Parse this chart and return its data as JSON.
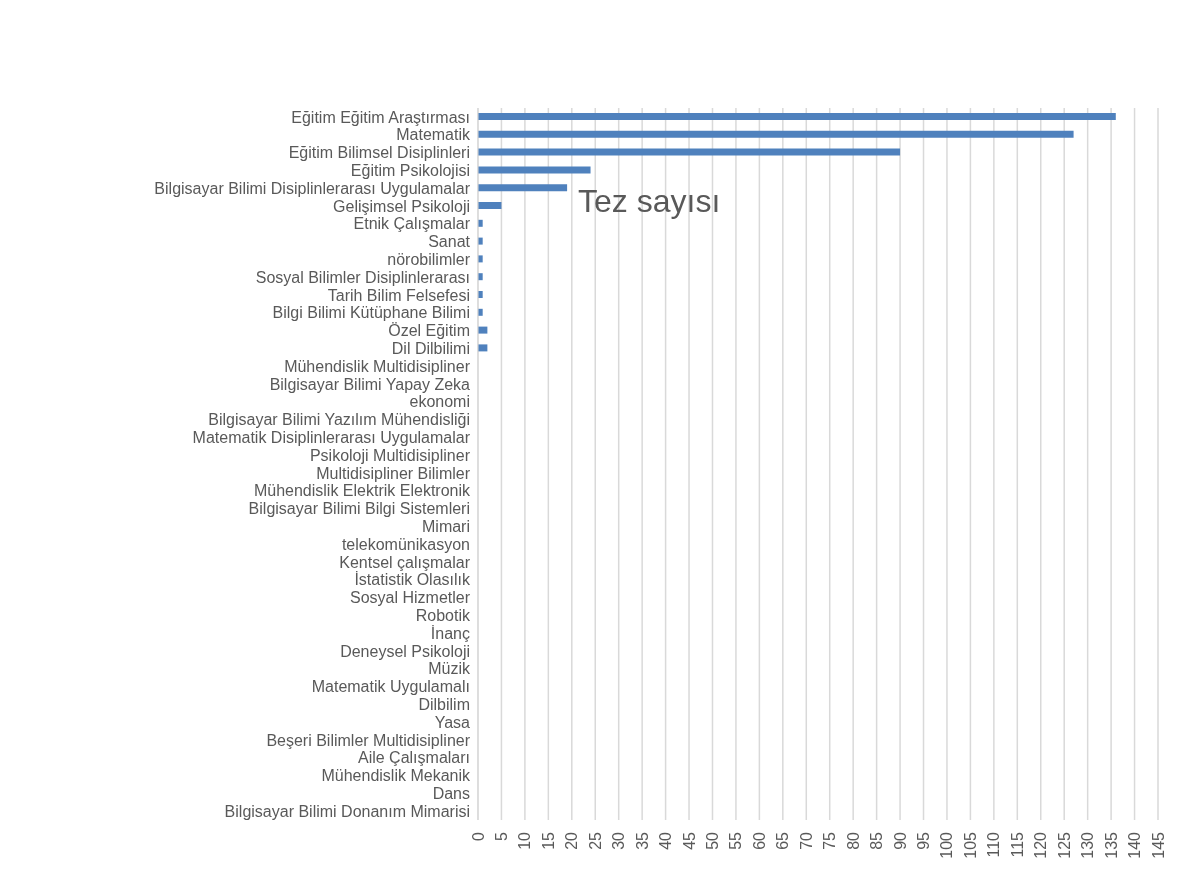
{
  "chart_data": {
    "type": "bar",
    "orientation": "horizontal",
    "title": "Tez sayısı",
    "categories": [
      "Eğitim Eğitim Araştırması",
      "Matematik",
      "Eğitim Bilimsel Disiplinleri",
      "Eğitim Psikolojisi",
      "Bilgisayar Bilimi Disiplinlerarası Uygulamalar",
      "Gelişimsel Psikoloji",
      "Etnik Çalışmalar",
      "Sanat",
      "nörobilimler",
      "Sosyal Bilimler Disiplinlerarası",
      "Tarih Bilim Felsefesi",
      "Bilgi Bilimi Kütüphane Bilimi",
      "Özel Eğitim",
      "Dil Dilbilimi",
      "Mühendislik Multidisipliner",
      "Bilgisayar Bilimi Yapay Zeka",
      "ekonomi",
      "Bilgisayar Bilimi Yazılım Mühendisliği",
      "Matematik Disiplinlerarası Uygulamalar",
      "Psikoloji Multidisipliner",
      "Multidisipliner Bilimler",
      "Mühendislik Elektrik Elektronik",
      "Bilgisayar Bilimi Bilgi Sistemleri",
      "Mimari",
      "telekomünikasyon",
      "Kentsel çalışmalar",
      "İstatistik Olasılık",
      "Sosyal Hizmetler",
      "Robotik",
      "İnanç",
      "Deneysel Psikoloji",
      "Müzik",
      "Matematik Uygulamalı",
      "Dilbilim",
      "Yasa",
      "Beşeri Bilimler Multidisipliner",
      "Aile Çalışmaları",
      "Mühendislik Mekanik",
      "Dans",
      "Bilgisayar Bilimi Donanım Mimarisi"
    ],
    "values": [
      136,
      127,
      90,
      24,
      19,
      5,
      1,
      1,
      1,
      1,
      1,
      1,
      2,
      2,
      0,
      0,
      0,
      0,
      0,
      0,
      0,
      0,
      0,
      0,
      0,
      0,
      0,
      0,
      0,
      0,
      0,
      0,
      0,
      0,
      0,
      0,
      0,
      0,
      0,
      0
    ],
    "color": "#4f81bd",
    "xlim": [
      0,
      145
    ],
    "xticks": [
      0,
      5,
      10,
      15,
      20,
      25,
      30,
      35,
      40,
      45,
      50,
      55,
      60,
      65,
      70,
      75,
      80,
      85,
      90,
      95,
      100,
      105,
      110,
      115,
      120,
      125,
      130,
      135,
      140,
      145
    ],
    "grid": "x"
  }
}
